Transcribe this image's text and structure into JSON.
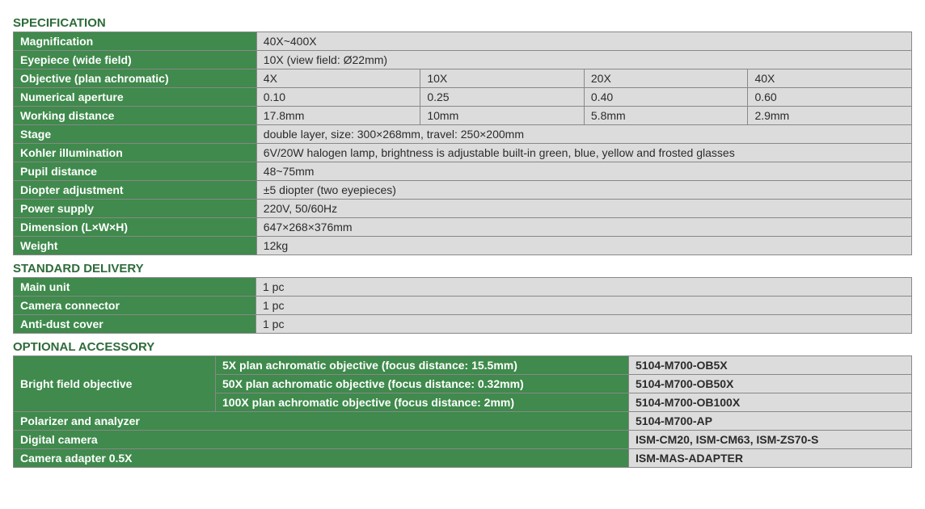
{
  "colors": {
    "green": "#3f8a4c",
    "gray": "#dcdcdc",
    "title_green": "#2e6b3a",
    "border": "#888",
    "text_dark": "#2b2b2b"
  },
  "sections": {
    "spec_title": "SPECIFICATION",
    "delivery_title": "STANDARD DELIVERY",
    "optional_title": "OPTIONAL ACCESSORY"
  },
  "spec": {
    "magnification": {
      "label": "Magnification",
      "value": "40X~400X"
    },
    "eyepiece": {
      "label": "Eyepiece (wide field)",
      "value": "10X (view field: Ø22mm)"
    },
    "objective": {
      "label": "Objective (plan achromatic)",
      "cols": [
        "4X",
        "10X",
        "20X",
        "40X"
      ]
    },
    "numerical_aperture": {
      "label": "Numerical aperture",
      "cols": [
        "0.10",
        "0.25",
        "0.40",
        "0.60"
      ]
    },
    "working_distance": {
      "label": "Working distance",
      "cols": [
        "17.8mm",
        "10mm",
        "5.8mm",
        "2.9mm"
      ]
    },
    "stage": {
      "label": "Stage",
      "value": "double layer, size: 300×268mm, travel: 250×200mm"
    },
    "kohler": {
      "label": "Kohler illumination",
      "value": "6V/20W halogen lamp, brightness is adjustable built-in green, blue, yellow and frosted glasses"
    },
    "pupil": {
      "label": "Pupil distance",
      "value": "48~75mm"
    },
    "diopter": {
      "label": "Diopter adjustment",
      "value": "±5 diopter (two eyepieces)"
    },
    "power": {
      "label": "Power supply",
      "value": "220V, 50/60Hz"
    },
    "dimension": {
      "label": "Dimension (L×W×H)",
      "value": "647×268×376mm"
    },
    "weight": {
      "label": "Weight",
      "value": "12kg"
    }
  },
  "delivery": {
    "main_unit": {
      "label": "Main unit",
      "value": "1 pc"
    },
    "camera_connector": {
      "label": "Camera connector",
      "value": "1 pc"
    },
    "anti_dust": {
      "label": "Anti-dust cover",
      "value": "1 pc"
    }
  },
  "optional": {
    "bright_field": {
      "label": "Bright field objective",
      "rows": [
        {
          "desc": "5X plan achromatic objective (focus distance: 15.5mm)",
          "code": "5104-M700-OB5X"
        },
        {
          "desc": "50X plan achromatic objective (focus distance: 0.32mm)",
          "code": "5104-M700-OB50X"
        },
        {
          "desc": "100X plan achromatic objective (focus distance: 2mm)",
          "code": "5104-M700-OB100X"
        }
      ]
    },
    "polarizer": {
      "label": "Polarizer and analyzer",
      "code": "5104-M700-AP"
    },
    "digital_camera": {
      "label": "Digital camera",
      "code": "ISM-CM20, ISM-CM63, ISM-ZS70-S"
    },
    "adapter": {
      "label": "Camera adapter 0.5X",
      "code": "ISM-MAS-ADAPTER"
    }
  }
}
